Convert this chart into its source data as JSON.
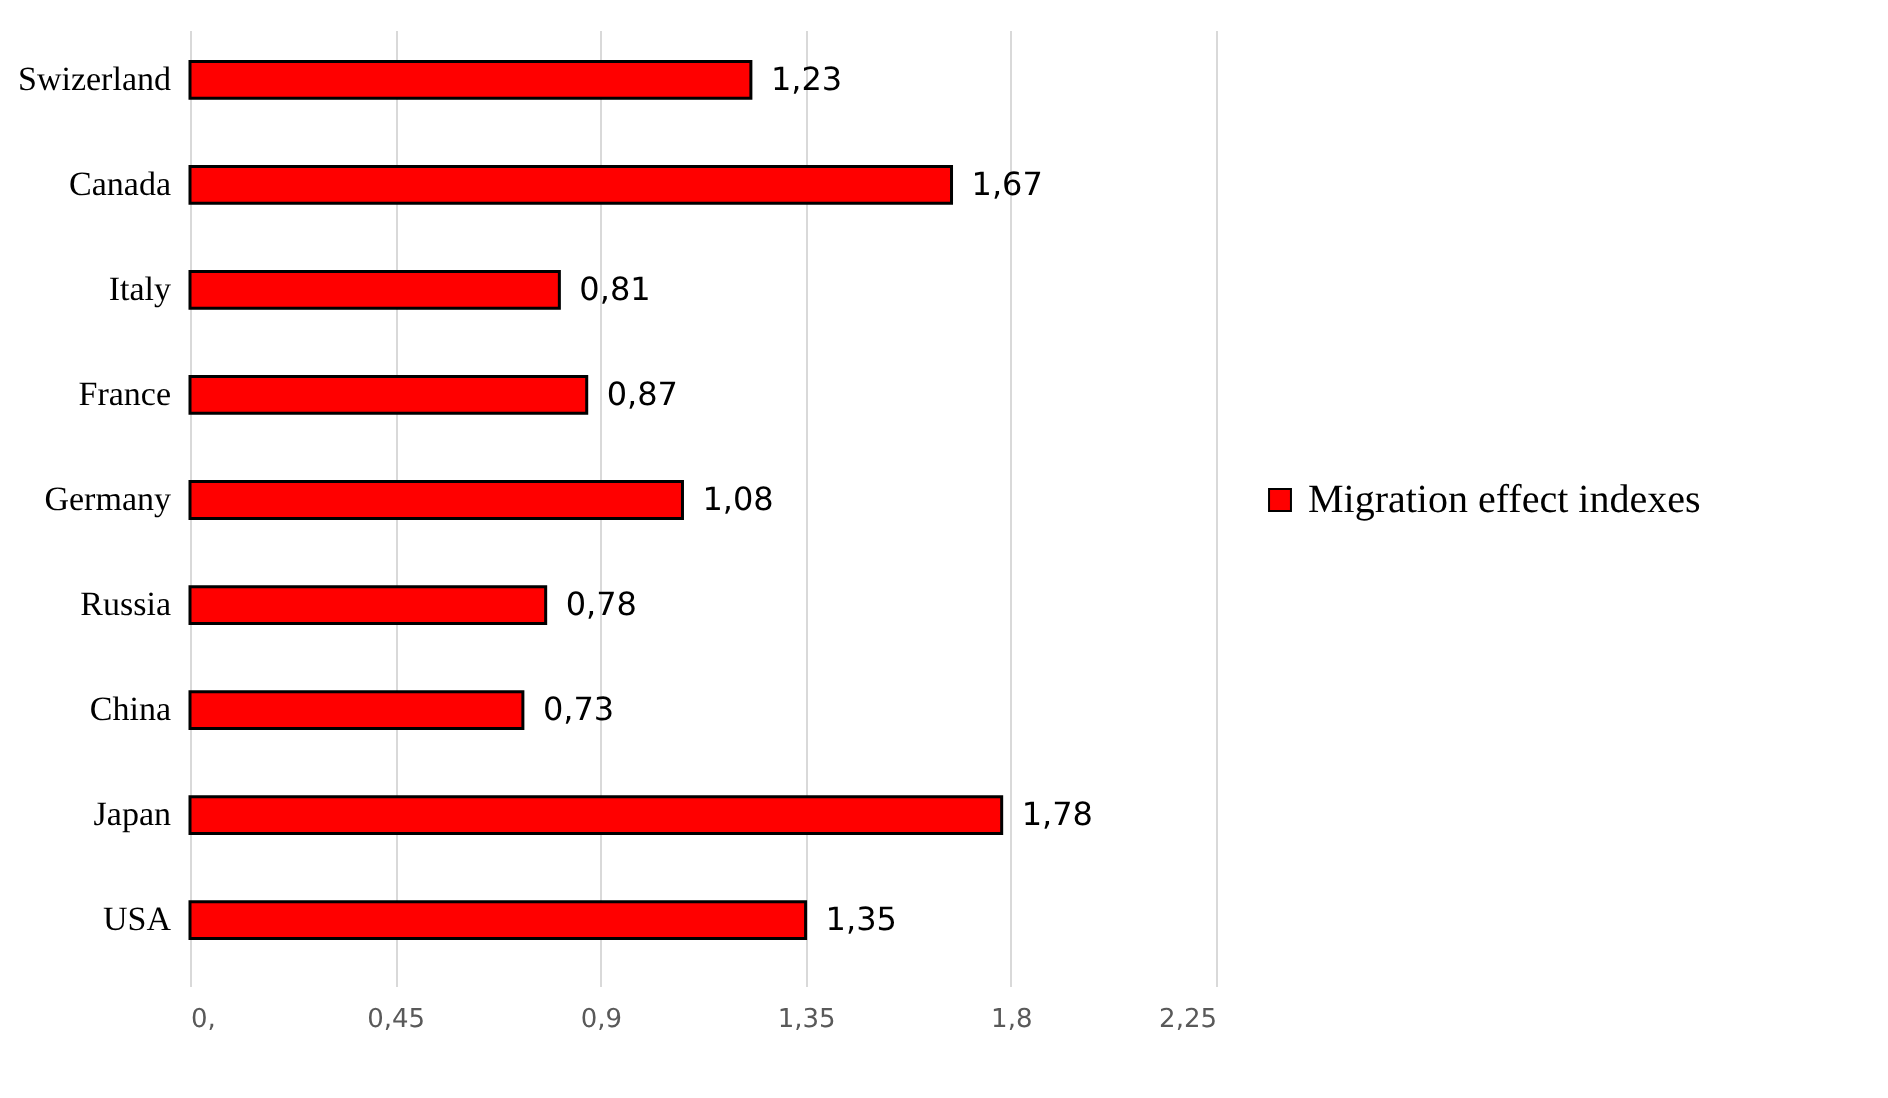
{
  "chart_data": {
    "type": "bar",
    "orientation": "horizontal",
    "categories": [
      "Swizerland",
      "Canada",
      "Italy",
      "France",
      "Germany",
      "Russia",
      "China",
      "Japan",
      "USA"
    ],
    "series": [
      {
        "name": "Migration effect indexes",
        "color": "#ff0000",
        "values": [
          1.23,
          1.67,
          0.81,
          0.87,
          1.08,
          0.78,
          0.73,
          1.78,
          1.35
        ],
        "value_labels": [
          "1,23",
          "1,67",
          "0,81",
          "0,87",
          "1,08",
          "0,78",
          "0,73",
          "1,78",
          "1,35"
        ]
      }
    ],
    "xlim": [
      0,
      2.25
    ],
    "xticks": [
      {
        "value": 0,
        "label": "0,"
      },
      {
        "value": 0.45,
        "label": "0,45"
      },
      {
        "value": 0.9,
        "label": "0,9"
      },
      {
        "value": 1.35,
        "label": "1,35"
      },
      {
        "value": 1.8,
        "label": "1,8"
      },
      {
        "value": 2.25,
        "label": "2,25"
      }
    ],
    "grid": "x",
    "legend": "right"
  }
}
